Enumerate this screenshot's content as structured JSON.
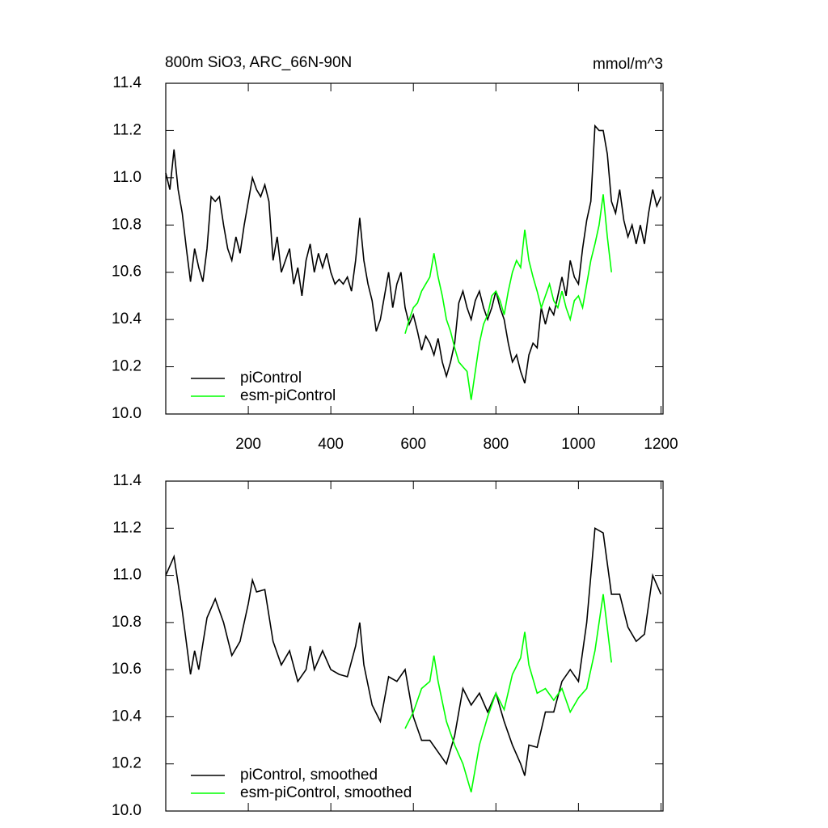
{
  "chart_data": [
    {
      "type": "line",
      "title": "800m SiO3, ARC_66N-90N",
      "units": "mmol/m^3",
      "xlim": [
        0,
        1205
      ],
      "ylim": [
        10.0,
        11.4
      ],
      "xticks": [
        200,
        400,
        600,
        800,
        1000,
        1200
      ],
      "yticks": [
        {
          "value": 10.0,
          "label": "10.0"
        },
        10.2,
        10.4,
        10.6,
        10.8,
        {
          "value": 11.0,
          "label": "11.0"
        },
        11.2,
        11.4
      ],
      "legend": "lower left",
      "series": [
        {
          "name": "piControl",
          "color": "#000000",
          "x": [
            0,
            10,
            20,
            30,
            40,
            50,
            60,
            70,
            80,
            90,
            100,
            110,
            120,
            130,
            140,
            150,
            160,
            170,
            180,
            190,
            200,
            210,
            220,
            230,
            240,
            250,
            260,
            270,
            280,
            290,
            300,
            310,
            320,
            330,
            340,
            350,
            360,
            370,
            380,
            390,
            400,
            410,
            420,
            430,
            440,
            450,
            460,
            470,
            480,
            490,
            500,
            510,
            520,
            530,
            540,
            550,
            560,
            570,
            580,
            590,
            600,
            610,
            620,
            630,
            640,
            650,
            660,
            670,
            680,
            690,
            700,
            710,
            720,
            730,
            740,
            750,
            760,
            770,
            780,
            790,
            800,
            810,
            820,
            830,
            840,
            850,
            860,
            870,
            880,
            890,
            900,
            910,
            920,
            930,
            940,
            950,
            960,
            970,
            980,
            990,
            1000,
            1010,
            1020,
            1030,
            1040,
            1050,
            1060,
            1070,
            1080,
            1090,
            1100,
            1110,
            1120,
            1130,
            1140,
            1150,
            1160,
            1170,
            1180,
            1190,
            1200
          ],
          "values": [
            11.02,
            10.95,
            11.12,
            10.95,
            10.85,
            10.7,
            10.56,
            10.7,
            10.62,
            10.56,
            10.7,
            10.92,
            10.9,
            10.92,
            10.8,
            10.7,
            10.65,
            10.75,
            10.68,
            10.8,
            10.9,
            11.0,
            10.95,
            10.92,
            10.97,
            10.9,
            10.65,
            10.75,
            10.6,
            10.65,
            10.7,
            10.55,
            10.62,
            10.5,
            10.65,
            10.72,
            10.6,
            10.68,
            10.62,
            10.68,
            10.6,
            10.55,
            10.57,
            10.55,
            10.58,
            10.52,
            10.65,
            10.83,
            10.65,
            10.55,
            10.48,
            10.35,
            10.4,
            10.5,
            10.6,
            10.45,
            10.55,
            10.6,
            10.45,
            10.38,
            10.42,
            10.35,
            10.27,
            10.33,
            10.3,
            10.25,
            10.32,
            10.22,
            10.16,
            10.22,
            10.3,
            10.47,
            10.52,
            10.45,
            10.4,
            10.48,
            10.52,
            10.45,
            10.4,
            10.45,
            10.52,
            10.45,
            10.4,
            10.3,
            10.22,
            10.25,
            10.18,
            10.13,
            10.25,
            10.3,
            10.28,
            10.45,
            10.38,
            10.45,
            10.42,
            10.5,
            10.58,
            10.5,
            10.65,
            10.58,
            10.55,
            10.7,
            10.82,
            10.9,
            11.22,
            11.2,
            11.2,
            11.1,
            10.9,
            10.85,
            10.95,
            10.82,
            10.75,
            10.8,
            10.72,
            10.8,
            10.72,
            10.85,
            10.95,
            10.88,
            10.92
          ]
        },
        {
          "name": "esm-piControl",
          "color": "#00ff00",
          "x": [
            580,
            590,
            600,
            610,
            620,
            630,
            640,
            650,
            660,
            670,
            680,
            690,
            700,
            710,
            720,
            730,
            740,
            750,
            760,
            770,
            780,
            790,
            800,
            810,
            820,
            830,
            840,
            850,
            860,
            870,
            880,
            890,
            900,
            910,
            920,
            930,
            940,
            950,
            960,
            970,
            980,
            990,
            1000,
            1010,
            1020,
            1030,
            1040,
            1050,
            1060,
            1070,
            1080
          ],
          "values": [
            10.34,
            10.4,
            10.45,
            10.47,
            10.52,
            10.55,
            10.58,
            10.68,
            10.58,
            10.5,
            10.4,
            10.35,
            10.28,
            10.22,
            10.2,
            10.18,
            10.06,
            10.18,
            10.3,
            10.38,
            10.42,
            10.5,
            10.52,
            10.48,
            10.42,
            10.52,
            10.6,
            10.65,
            10.62,
            10.78,
            10.65,
            10.58,
            10.52,
            10.45,
            10.5,
            10.55,
            10.48,
            10.45,
            10.52,
            10.45,
            10.4,
            10.48,
            10.5,
            10.45,
            10.55,
            10.65,
            10.72,
            10.8,
            10.93,
            10.75,
            10.6
          ]
        }
      ]
    },
    {
      "type": "line",
      "xlim": [
        0,
        1205
      ],
      "ylim": [
        10.0,
        11.4
      ],
      "yticks": [
        {
          "value": 10.0,
          "label": "10.0"
        },
        10.2,
        10.4,
        10.6,
        10.8,
        {
          "value": 11.0,
          "label": "11.0"
        },
        11.2,
        11.4
      ],
      "legend": "lower left",
      "series": [
        {
          "name": "piControl, smoothed",
          "color": "#000000",
          "x": [
            0,
            20,
            40,
            60,
            70,
            80,
            100,
            120,
            140,
            160,
            180,
            200,
            210,
            220,
            240,
            260,
            280,
            300,
            320,
            340,
            350,
            360,
            380,
            400,
            420,
            440,
            460,
            470,
            480,
            500,
            520,
            540,
            560,
            580,
            600,
            620,
            640,
            660,
            680,
            700,
            720,
            740,
            760,
            780,
            800,
            820,
            840,
            860,
            870,
            880,
            900,
            920,
            940,
            960,
            980,
            1000,
            1020,
            1040,
            1060,
            1080,
            1100,
            1120,
            1140,
            1160,
            1180,
            1200
          ],
          "values": [
            11.0,
            11.08,
            10.85,
            10.58,
            10.68,
            10.6,
            10.82,
            10.9,
            10.8,
            10.66,
            10.72,
            10.88,
            10.98,
            10.93,
            10.94,
            10.72,
            10.62,
            10.68,
            10.55,
            10.6,
            10.7,
            10.6,
            10.68,
            10.6,
            10.58,
            10.57,
            10.7,
            10.8,
            10.62,
            10.45,
            10.38,
            10.57,
            10.55,
            10.6,
            10.4,
            10.3,
            10.3,
            10.25,
            10.2,
            10.32,
            10.52,
            10.45,
            10.5,
            10.42,
            10.5,
            10.38,
            10.28,
            10.2,
            10.15,
            10.28,
            10.27,
            10.42,
            10.42,
            10.55,
            10.6,
            10.55,
            10.8,
            11.2,
            11.18,
            10.92,
            10.92,
            10.78,
            10.72,
            10.75,
            11.0,
            10.92
          ]
        },
        {
          "name": "esm-piControl, smoothed",
          "color": "#00ff00",
          "x": [
            580,
            600,
            620,
            640,
            650,
            660,
            680,
            700,
            720,
            740,
            760,
            780,
            800,
            820,
            840,
            860,
            870,
            880,
            900,
            920,
            940,
            960,
            980,
            1000,
            1020,
            1040,
            1060,
            1080
          ],
          "values": [
            10.35,
            10.42,
            10.52,
            10.55,
            10.66,
            10.55,
            10.38,
            10.28,
            10.2,
            10.08,
            10.28,
            10.4,
            10.5,
            10.43,
            10.58,
            10.65,
            10.76,
            10.62,
            10.5,
            10.52,
            10.47,
            10.52,
            10.42,
            10.48,
            10.52,
            10.68,
            10.92,
            10.63
          ]
        }
      ]
    }
  ]
}
